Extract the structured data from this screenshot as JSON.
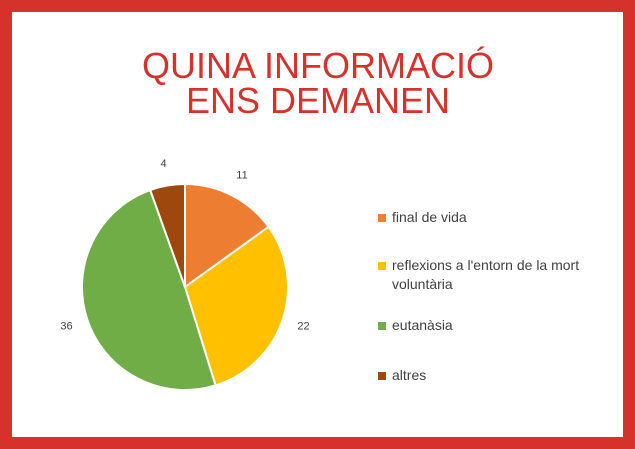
{
  "chart_data": {
    "type": "pie",
    "title": [
      "QUINA INFORMACIÓ",
      "ENS DEMANEN"
    ],
    "categories": [
      "final de vida",
      "reflexions a l'entorn de la mort voluntària",
      "eutanàsia",
      "altres"
    ],
    "values": [
      11,
      22,
      36,
      4
    ],
    "colors": [
      "#ed7d31",
      "#ffc000",
      "#70ad47",
      "#9e480e"
    ],
    "legend": "right"
  }
}
